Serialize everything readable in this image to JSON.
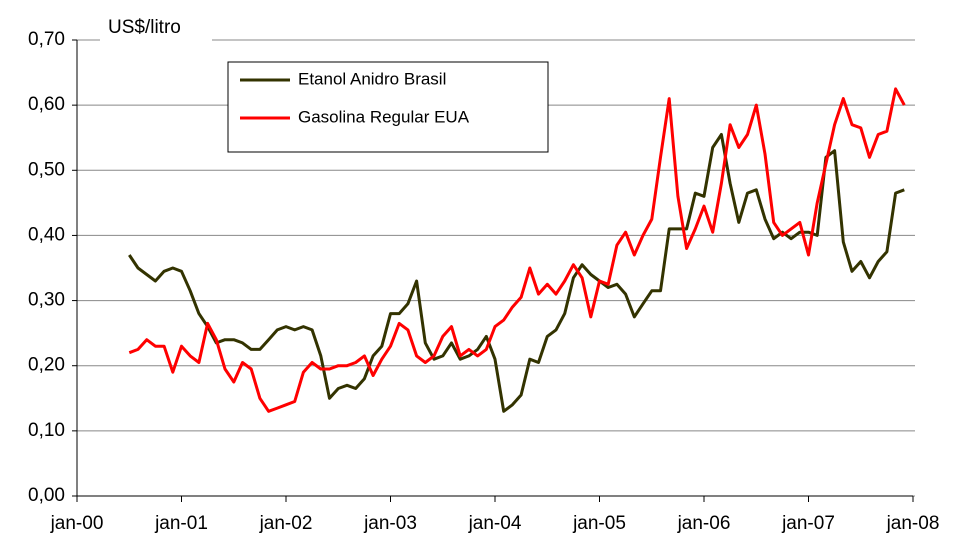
{
  "chart_data": {
    "type": "line",
    "y_label": "US$/litro",
    "x": [
      "2000-07",
      "2000-08",
      "2000-09",
      "2000-10",
      "2000-11",
      "2000-12",
      "2001-01",
      "2001-02",
      "2001-03",
      "2001-04",
      "2001-05",
      "2001-06",
      "2001-07",
      "2001-08",
      "2001-09",
      "2001-10",
      "2001-11",
      "2001-12",
      "2002-01",
      "2002-02",
      "2002-03",
      "2002-04",
      "2002-05",
      "2002-06",
      "2002-07",
      "2002-08",
      "2002-09",
      "2002-10",
      "2002-11",
      "2002-12",
      "2003-01",
      "2003-02",
      "2003-03",
      "2003-04",
      "2003-05",
      "2003-06",
      "2003-07",
      "2003-08",
      "2003-09",
      "2003-10",
      "2003-11",
      "2003-12",
      "2004-01",
      "2004-02",
      "2004-03",
      "2004-04",
      "2004-05",
      "2004-06",
      "2004-07",
      "2004-08",
      "2004-09",
      "2004-10",
      "2004-11",
      "2004-12",
      "2005-01",
      "2005-02",
      "2005-03",
      "2005-04",
      "2005-05",
      "2005-06",
      "2005-07",
      "2005-08",
      "2005-09",
      "2005-10",
      "2005-11",
      "2005-12",
      "2006-01",
      "2006-02",
      "2006-03",
      "2006-04",
      "2006-05",
      "2006-06",
      "2006-07",
      "2006-08",
      "2006-09",
      "2006-10",
      "2006-11",
      "2006-12",
      "2007-01",
      "2007-02",
      "2007-03",
      "2007-04",
      "2007-05",
      "2007-06",
      "2007-07",
      "2007-08",
      "2007-09",
      "2007-10",
      "2007-11",
      "2007-12"
    ],
    "series": [
      {
        "name": "Etanol Anidro Brasil",
        "color": "#333300",
        "values": [
          0.37,
          0.35,
          0.34,
          0.33,
          0.345,
          0.35,
          0.345,
          0.315,
          0.28,
          0.26,
          0.235,
          0.24,
          0.24,
          0.235,
          0.225,
          0.225,
          0.24,
          0.255,
          0.26,
          0.255,
          0.26,
          0.255,
          0.215,
          0.15,
          0.165,
          0.17,
          0.165,
          0.18,
          0.215,
          0.23,
          0.28,
          0.28,
          0.295,
          0.33,
          0.235,
          0.21,
          0.215,
          0.235,
          0.21,
          0.215,
          0.225,
          0.245,
          0.21,
          0.13,
          0.14,
          0.155,
          0.21,
          0.205,
          0.245,
          0.255,
          0.28,
          0.335,
          0.355,
          0.34,
          0.33,
          0.32,
          0.325,
          0.31,
          0.275,
          0.295,
          0.315,
          0.315,
          0.41,
          0.41,
          0.41,
          0.465,
          0.46,
          0.535,
          0.555,
          0.48,
          0.42,
          0.465,
          0.47,
          0.425,
          0.395,
          0.405,
          0.395,
          0.405,
          0.405,
          0.4,
          0.52,
          0.53,
          0.39,
          0.345,
          0.36,
          0.335,
          0.36,
          0.375,
          0.465,
          0.47
        ]
      },
      {
        "name": "Gasolina Regular EUA",
        "color": "#ff0000",
        "values": [
          0.22,
          0.225,
          0.24,
          0.23,
          0.23,
          0.19,
          0.23,
          0.215,
          0.205,
          0.265,
          0.24,
          0.195,
          0.175,
          0.205,
          0.195,
          0.15,
          0.13,
          0.135,
          0.14,
          0.145,
          0.19,
          0.205,
          0.195,
          0.195,
          0.2,
          0.2,
          0.205,
          0.215,
          0.185,
          0.21,
          0.23,
          0.265,
          0.255,
          0.215,
          0.205,
          0.215,
          0.245,
          0.26,
          0.215,
          0.225,
          0.215,
          0.225,
          0.26,
          0.27,
          0.29,
          0.305,
          0.35,
          0.31,
          0.325,
          0.31,
          0.33,
          0.355,
          0.335,
          0.275,
          0.33,
          0.325,
          0.385,
          0.405,
          0.37,
          0.4,
          0.425,
          0.52,
          0.61,
          0.46,
          0.38,
          0.41,
          0.445,
          0.405,
          0.48,
          0.57,
          0.535,
          0.555,
          0.6,
          0.525,
          0.42,
          0.4,
          0.41,
          0.42,
          0.37,
          0.45,
          0.51,
          0.57,
          0.61,
          0.57,
          0.565,
          0.52,
          0.555,
          0.56,
          0.625,
          0.6
        ]
      }
    ],
    "xlim": [
      "2000-01",
      "2008-01"
    ],
    "xticks": [
      {
        "value": "2000-01",
        "label": "jan-00"
      },
      {
        "value": "2001-01",
        "label": "jan-01"
      },
      {
        "value": "2002-01",
        "label": "jan-02"
      },
      {
        "value": "2003-01",
        "label": "jan-03"
      },
      {
        "value": "2004-01",
        "label": "jan-04"
      },
      {
        "value": "2005-01",
        "label": "jan-05"
      },
      {
        "value": "2006-01",
        "label": "jan-06"
      },
      {
        "value": "2007-01",
        "label": "jan-07"
      },
      {
        "value": "2008-01",
        "label": "jan-08"
      }
    ],
    "ylim": [
      0,
      0.7
    ],
    "yticks": [
      {
        "value": 0,
        "label": "0,00"
      },
      {
        "value": 0.1,
        "label": "0,10"
      },
      {
        "value": 0.2,
        "label": "0,20"
      },
      {
        "value": 0.3,
        "label": "0,30"
      },
      {
        "value": 0.4,
        "label": "0,40"
      },
      {
        "value": 0.5,
        "label": "0,50"
      },
      {
        "value": 0.6,
        "label": "0,60"
      },
      {
        "value": 0.7,
        "label": "0,70"
      }
    ],
    "grid": true,
    "legend": "upper left"
  }
}
